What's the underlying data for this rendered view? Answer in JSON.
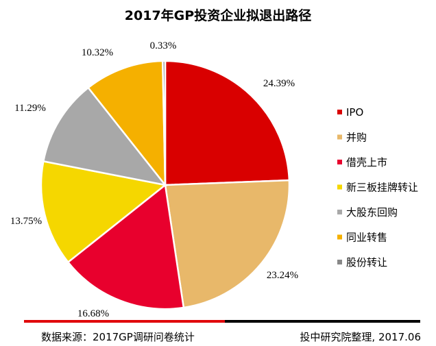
{
  "chart_data": {
    "type": "pie",
    "title": "2017年GP投资企业拟退出路径",
    "slices": [
      {
        "label": "IPO",
        "value": 24.39,
        "value_label": "24.39%",
        "color": "#d90000"
      },
      {
        "label": "并购",
        "value": 23.24,
        "value_label": "23.24%",
        "color": "#e8b86a"
      },
      {
        "label": "借壳上市",
        "value": 16.68,
        "value_label": "16.68%",
        "color": "#e8002d"
      },
      {
        "label": "新三板挂牌转让",
        "value": 13.75,
        "value_label": "13.75%",
        "color": "#f5d700"
      },
      {
        "label": "大股东回购",
        "value": 11.29,
        "value_label": "11.29%",
        "color": "#a8a8a8"
      },
      {
        "label": "同业转售",
        "value": 10.32,
        "value_label": "10.32%",
        "color": "#f5b000"
      },
      {
        "label": "股份转让",
        "value": 0.33,
        "value_label": "0.33%",
        "color": "#888888"
      }
    ],
    "legend_position": "right"
  },
  "footer": {
    "source": "数据来源：2017GP调研问卷统计",
    "credit": "投中研究院整理, 2017.06"
  }
}
